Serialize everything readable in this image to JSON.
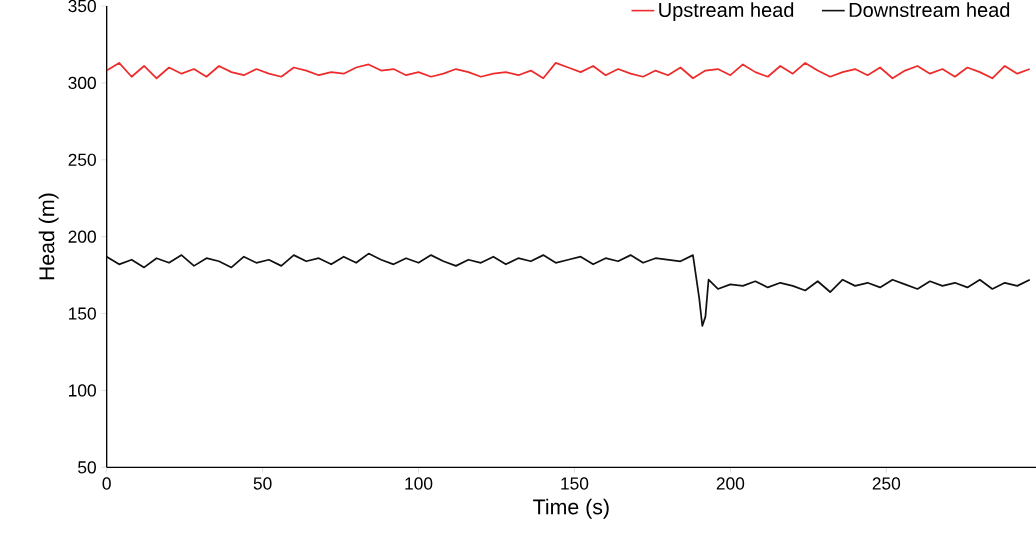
{
  "chart_data": {
    "type": "line",
    "xlabel": "Time (s)",
    "ylabel": "Head  (m)",
    "xlim": [
      0,
      298
    ],
    "xticks": [
      0,
      50,
      100,
      150,
      200,
      250
    ],
    "ylim": [
      50,
      350
    ],
    "yticks": [
      50,
      100,
      150,
      200,
      250,
      300,
      350
    ],
    "grid": false,
    "legend": "top right",
    "marker": "none",
    "line_style": "solid",
    "series": [
      {
        "name": "Upstream head",
        "color": "#ee2b2b",
        "x": [
          0,
          4,
          8,
          12,
          16,
          20,
          24,
          28,
          32,
          36,
          40,
          44,
          48,
          52,
          56,
          60,
          64,
          68,
          72,
          76,
          80,
          84,
          88,
          92,
          96,
          100,
          104,
          108,
          112,
          116,
          120,
          124,
          128,
          132,
          136,
          140,
          144,
          148,
          152,
          156,
          160,
          164,
          168,
          172,
          176,
          180,
          184,
          188,
          192,
          196,
          200,
          204,
          208,
          212,
          216,
          220,
          224,
          228,
          232,
          236,
          240,
          244,
          248,
          252,
          256,
          260,
          264,
          268,
          272,
          276,
          280,
          284,
          288,
          292,
          296
        ],
        "values": [
          308,
          313,
          304,
          311,
          303,
          310,
          306,
          309,
          304,
          311,
          307,
          305,
          309,
          306,
          304,
          310,
          308,
          305,
          307,
          306,
          310,
          312,
          308,
          309,
          305,
          307,
          304,
          306,
          309,
          307,
          304,
          306,
          307,
          305,
          308,
          303,
          313,
          310,
          307,
          311,
          305,
          309,
          306,
          304,
          308,
          305,
          310,
          303,
          308,
          309,
          305,
          312,
          307,
          304,
          311,
          306,
          313,
          308,
          304,
          307,
          309,
          305,
          310,
          303,
          308,
          311,
          306,
          309,
          304,
          310,
          307,
          303,
          311,
          306,
          309
        ]
      },
      {
        "name": "Downstream head",
        "color": "#111111",
        "x": [
          0,
          4,
          8,
          12,
          16,
          20,
          24,
          28,
          32,
          36,
          40,
          44,
          48,
          52,
          56,
          60,
          64,
          68,
          72,
          76,
          80,
          84,
          88,
          92,
          96,
          100,
          104,
          108,
          112,
          116,
          120,
          124,
          128,
          132,
          136,
          140,
          144,
          148,
          152,
          156,
          160,
          164,
          168,
          172,
          176,
          180,
          184,
          188,
          190,
          191,
          192,
          193,
          196,
          200,
          204,
          208,
          212,
          216,
          220,
          224,
          228,
          232,
          236,
          240,
          244,
          248,
          252,
          256,
          260,
          264,
          268,
          272,
          276,
          280,
          284,
          288,
          292,
          296
        ],
        "values": [
          187,
          182,
          185,
          180,
          186,
          183,
          188,
          181,
          186,
          184,
          180,
          187,
          183,
          185,
          181,
          188,
          184,
          186,
          182,
          187,
          183,
          189,
          185,
          182,
          186,
          183,
          188,
          184,
          181,
          185,
          183,
          187,
          182,
          186,
          184,
          188,
          183,
          185,
          187,
          182,
          186,
          184,
          188,
          183,
          186,
          185,
          184,
          188,
          160,
          142,
          148,
          172,
          166,
          169,
          168,
          171,
          167,
          170,
          168,
          165,
          171,
          164,
          172,
          168,
          170,
          167,
          172,
          169,
          166,
          171,
          168,
          170,
          167,
          172,
          166,
          170,
          168,
          172
        ]
      }
    ]
  }
}
